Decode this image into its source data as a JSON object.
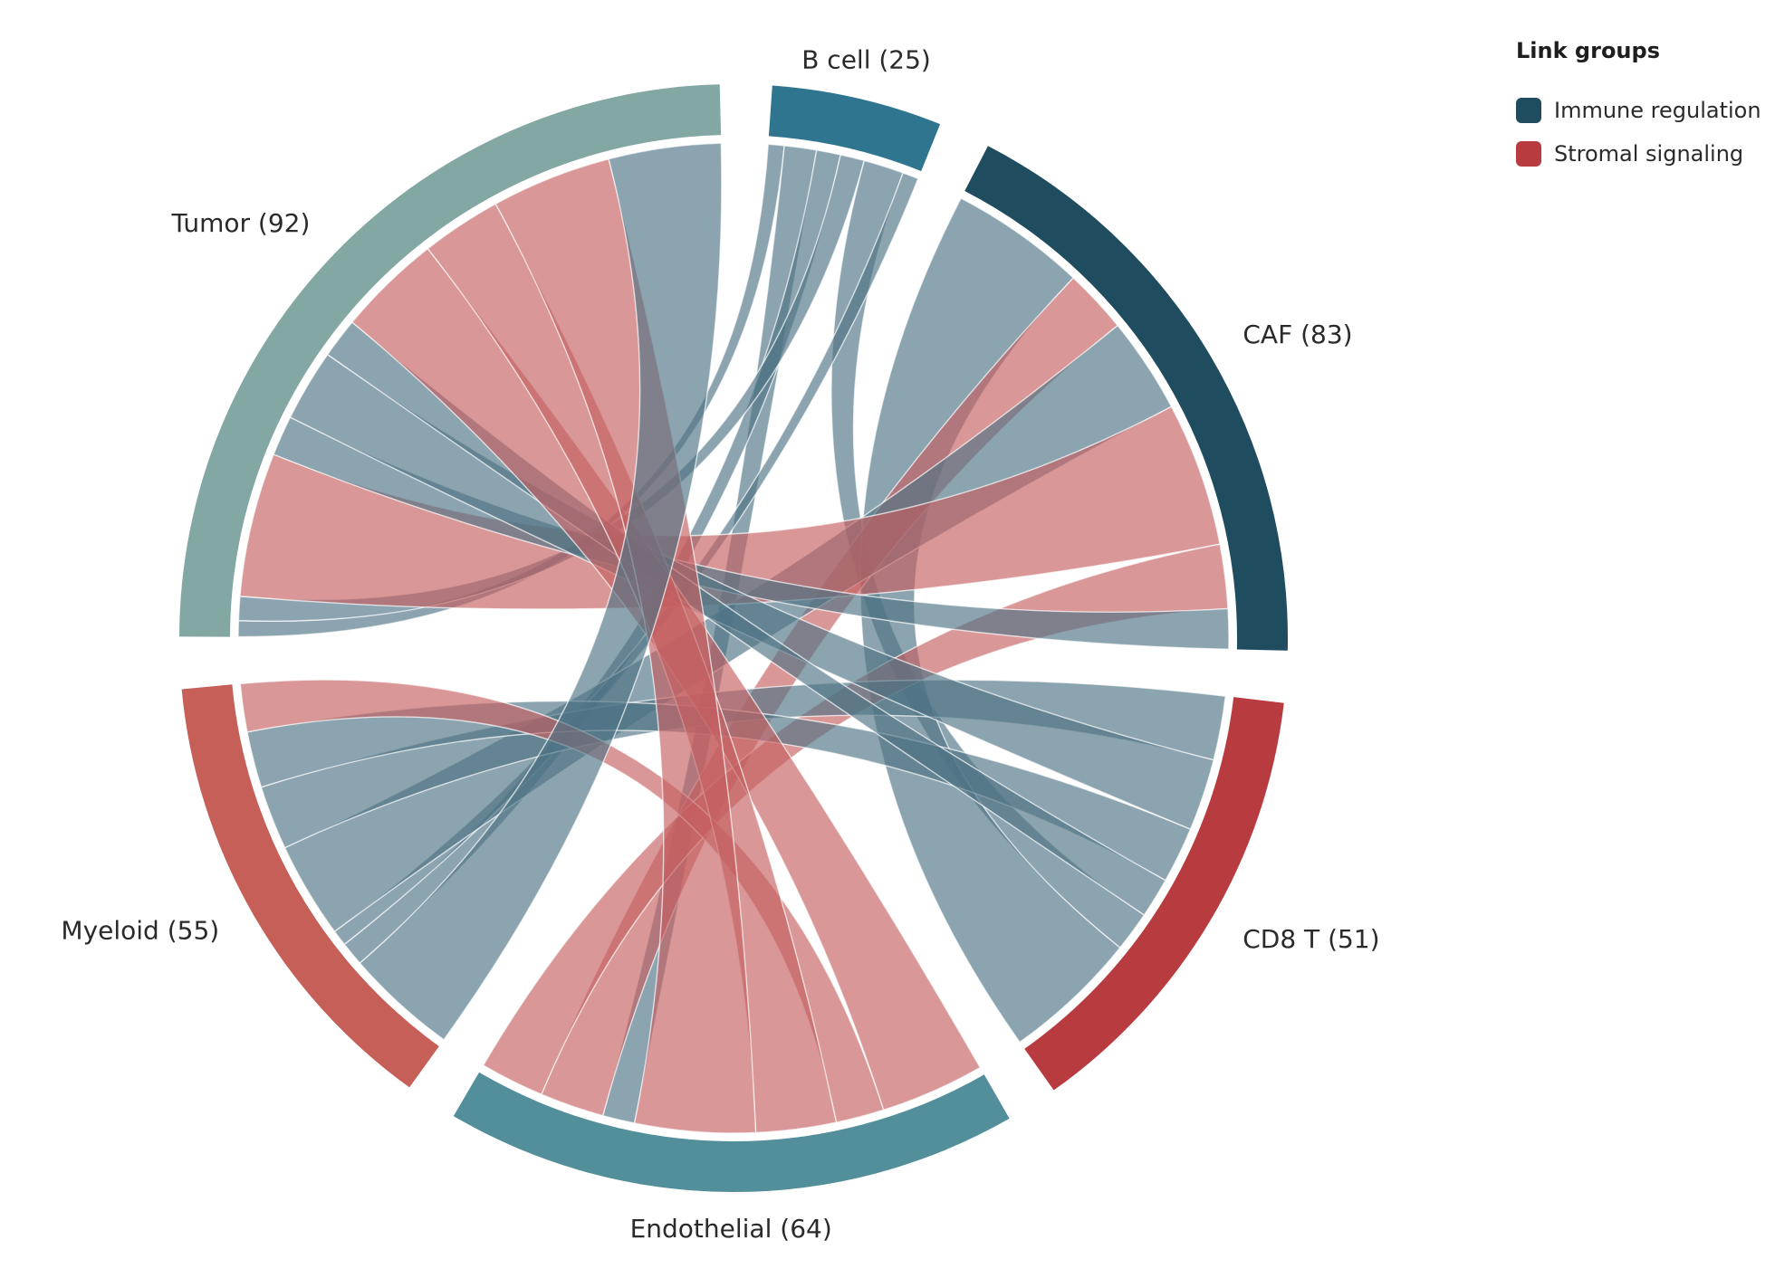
{
  "chart_data": {
    "type": "chord",
    "groups": [
      {
        "name": "B cell",
        "label": "B cell (25)",
        "value": 25,
        "color": "#30758f"
      },
      {
        "name": "CAF",
        "label": "CAF (83)",
        "value": 83,
        "color": "#1f4c5f"
      },
      {
        "name": "CD8 T",
        "label": "CD8 T (51)",
        "value": 51,
        "color": "#b83c3f"
      },
      {
        "name": "Endothelial",
        "label": "Endothelial (64)",
        "value": 64,
        "color": "#528f9a"
      },
      {
        "name": "Myeloid",
        "label": "Myeloid (55)",
        "value": 55,
        "color": "#c55f58"
      },
      {
        "name": "Tumor",
        "label": "Tumor (92)",
        "value": 92,
        "color": "#83a7a2"
      }
    ],
    "links": [
      {
        "source": "B cell",
        "target": "Tumor",
        "value": 2,
        "group": "Immune regulation"
      },
      {
        "source": "B cell",
        "target": "Endothelial",
        "value": 4,
        "group": "Immune regulation"
      },
      {
        "source": "B cell",
        "target": "Myeloid",
        "value": 3,
        "group": "Immune regulation"
      },
      {
        "source": "B cell",
        "target": "Tumor",
        "value": 3,
        "group": "Immune regulation"
      },
      {
        "source": "B cell",
        "target": "CD8 T",
        "value": 5,
        "group": "Immune regulation"
      },
      {
        "source": "B cell",
        "target": "Myeloid",
        "value": 2,
        "group": "Immune regulation"
      },
      {
        "source": "CAF",
        "target": "CD8 T",
        "value": 17,
        "group": "Immune regulation"
      },
      {
        "source": "CAF",
        "target": "Endothelial",
        "value": 8,
        "group": "Stromal signaling"
      },
      {
        "source": "CAF",
        "target": "Myeloid",
        "value": 12,
        "group": "Immune regulation"
      },
      {
        "source": "CAF",
        "target": "Tumor",
        "value": 18,
        "group": "Stromal signaling"
      },
      {
        "source": "CAF",
        "target": "Endothelial",
        "value": 8,
        "group": "Stromal signaling"
      },
      {
        "source": "CAF",
        "target": "Tumor",
        "value": 5,
        "group": "Immune regulation"
      },
      {
        "source": "CD8 T",
        "target": "Myeloid",
        "value": 8,
        "group": "Immune regulation"
      },
      {
        "source": "CD8 T",
        "target": "Tumor",
        "value": 9,
        "group": "Immune regulation"
      },
      {
        "source": "CD8 T",
        "target": "Myeloid",
        "value": 7,
        "group": "Immune regulation"
      },
      {
        "source": "CD8 T",
        "target": "Tumor",
        "value": 5,
        "group": "Immune regulation"
      },
      {
        "source": "Endothelial",
        "target": "Tumor",
        "value": 13,
        "group": "Stromal signaling"
      },
      {
        "source": "Endothelial",
        "target": "Myeloid",
        "value": 6,
        "group": "Stromal signaling"
      },
      {
        "source": "Endothelial",
        "target": "Tumor",
        "value": 10,
        "group": "Stromal signaling"
      },
      {
        "source": "Endothelial",
        "target": "Tumor",
        "value": 15,
        "group": "Stromal signaling"
      },
      {
        "source": "Myeloid",
        "target": "Tumor",
        "value": 14,
        "group": "Immune regulation"
      }
    ],
    "legend": {
      "title": "Link groups",
      "items": [
        {
          "label": "Immune regulation",
          "color": "#1f4c5f",
          "ribbon": "#4e7384"
        },
        {
          "label": "Stromal signaling",
          "color": "#b83c3f",
          "ribbon": "#c55f61"
        }
      ],
      "position": "top-right"
    }
  }
}
